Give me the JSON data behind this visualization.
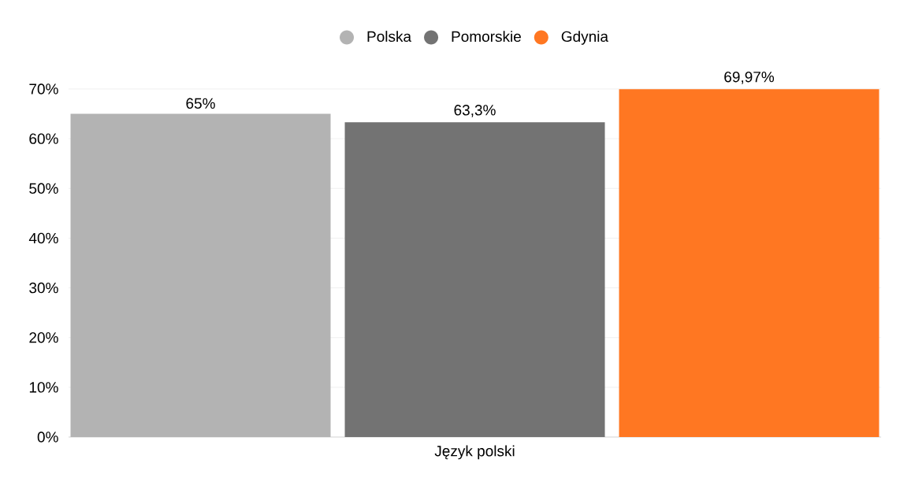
{
  "chart_data": {
    "type": "bar",
    "categories": [
      "Język polski"
    ],
    "series": [
      {
        "name": "Polska",
        "color": "#b3b3b3",
        "values": [
          65
        ],
        "value_labels": [
          "65%"
        ]
      },
      {
        "name": "Pomorskie",
        "color": "#737373",
        "values": [
          63.3
        ],
        "value_labels": [
          "63,3%"
        ]
      },
      {
        "name": "Gdynia",
        "color": "#ff7722",
        "values": [
          69.97
        ],
        "value_labels": [
          "69,97%"
        ]
      }
    ],
    "ylim": [
      0,
      70
    ],
    "yticks": [
      {
        "value": 0,
        "label": "0%"
      },
      {
        "value": 10,
        "label": "10%"
      },
      {
        "value": 20,
        "label": "20%"
      },
      {
        "value": 30,
        "label": "30%"
      },
      {
        "value": 40,
        "label": "40%"
      },
      {
        "value": 50,
        "label": "50%"
      },
      {
        "value": 60,
        "label": "60%"
      },
      {
        "value": 70,
        "label": "70%"
      }
    ],
    "grid": "y",
    "legend": "top"
  }
}
